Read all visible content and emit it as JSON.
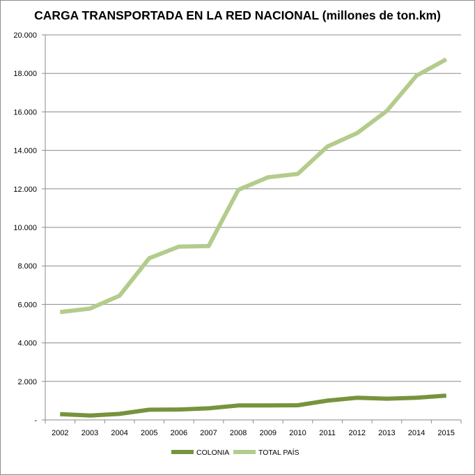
{
  "chart_data": {
    "type": "line",
    "title": "CARGA TRANSPORTADA EN LA RED NACIONAL (millones de ton.km)",
    "xlabel": "",
    "ylabel": "",
    "x": [
      "2002",
      "2003",
      "2004",
      "2005",
      "2006",
      "2007",
      "2008",
      "2009",
      "2010",
      "2011",
      "2012",
      "2013",
      "2014",
      "2015"
    ],
    "ylim": [
      0,
      20000
    ],
    "yticks": [
      0,
      2000,
      4000,
      6000,
      8000,
      10000,
      12000,
      14000,
      16000,
      18000,
      20000
    ],
    "ytick_labels": [
      "-",
      "2.000",
      "4.000",
      "6.000",
      "8.000",
      "10.000",
      "12.000",
      "14.000",
      "16.000",
      "18.000",
      "20.000"
    ],
    "grid": true,
    "legend_position": "bottom",
    "series": [
      {
        "name": "COLONIA",
        "color": "#77933c",
        "values": [
          300,
          230,
          310,
          530,
          540,
          600,
          750,
          750,
          760,
          1000,
          1150,
          1100,
          1150,
          1260
        ]
      },
      {
        "name": "TOTAL PAÍS",
        "color": "#b3cc8c",
        "values": [
          5600,
          5780,
          6450,
          8400,
          9000,
          9030,
          11950,
          12600,
          12780,
          14200,
          14900,
          16050,
          17880,
          18730
        ]
      }
    ]
  }
}
